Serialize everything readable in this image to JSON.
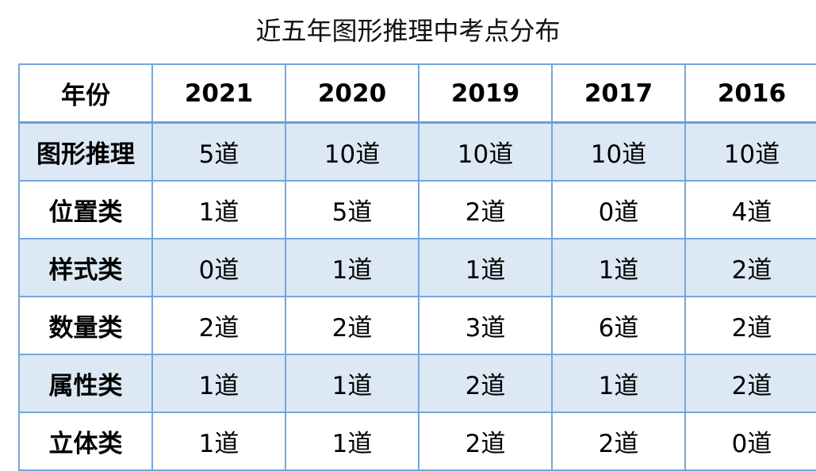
{
  "title": "近五年图形推理中考点分布",
  "table": {
    "header": [
      "年份",
      "2021",
      "2020",
      "2019",
      "2017",
      "2016"
    ],
    "rows": [
      [
        "图形推理",
        "5道",
        "10道",
        "10道",
        "10道",
        "10道"
      ],
      [
        "位置类",
        "1道",
        "5道",
        "2道",
        "0道",
        "4道"
      ],
      [
        "样式类",
        "0道",
        "1道",
        "1道",
        "1道",
        "2道"
      ],
      [
        "数量类",
        "2道",
        "2道",
        "3道",
        "6道",
        "2道"
      ],
      [
        "属性类",
        "1道",
        "1道",
        "2道",
        "1道",
        "2道"
      ],
      [
        "立体类",
        "1道",
        "1道",
        "2道",
        "2道",
        "0道"
      ]
    ]
  }
}
